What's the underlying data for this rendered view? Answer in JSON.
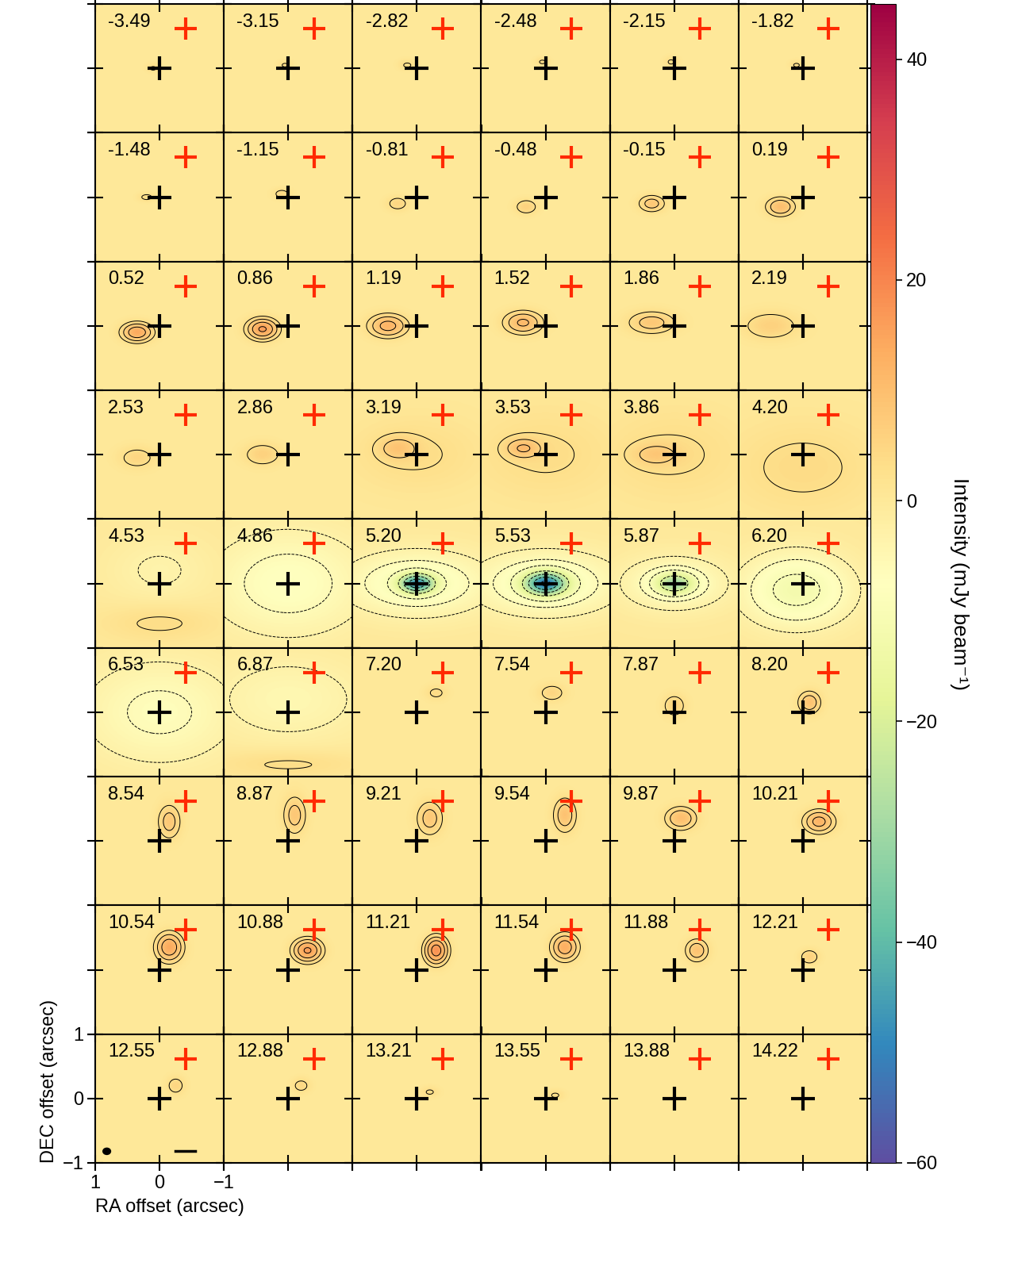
{
  "chart_data": {
    "type": "channel_map",
    "x_label": "RA offset (arcsec)",
    "y_label": "DEC offset (arcsec)",
    "xlim": [
      1,
      -1
    ],
    "ylim": [
      -1,
      1
    ],
    "xticks": [
      1,
      0,
      {
        "value": -1,
        "label": "−1"
      }
    ],
    "yticks": [
      {
        "value": -1,
        "label": "−1"
      },
      0,
      1
    ],
    "colorbar": {
      "label": "Intensity (mJy beam⁻¹)",
      "range": [
        -60,
        45
      ],
      "ticks": [
        {
          "value": -60,
          "label": "−60"
        },
        {
          "value": -40,
          "label": "−40"
        },
        {
          "value": -20,
          "label": "−20"
        },
        0,
        20,
        40
      ]
    },
    "contour_levels": [
      -50,
      -40,
      -30,
      -20,
      -10,
      -6,
      -3,
      3,
      6,
      10,
      15,
      20
    ],
    "black_cross": [
      0,
      0
    ],
    "red_cross": [
      -0.4,
      0.62
    ],
    "panels": [
      {
        "label": "-3.49",
        "components": [
          {
            "ra": 0.1,
            "dec": 0.0,
            "peak": 3.5,
            "width_ra": 0.08,
            "width_dec": 0.05
          }
        ]
      },
      {
        "label": "-3.15",
        "components": [
          {
            "ra": 0.05,
            "dec": 0.05,
            "peak": 3.5,
            "width_ra": 0.08,
            "width_dec": 0.05
          }
        ]
      },
      {
        "label": "-2.82",
        "components": [
          {
            "ra": 0.15,
            "dec": 0.05,
            "peak": 3.5,
            "width_ra": 0.1,
            "width_dec": 0.06
          }
        ]
      },
      {
        "label": "-2.48",
        "components": [
          {
            "ra": 0.05,
            "dec": 0.1,
            "peak": 3.5,
            "width_ra": 0.08,
            "width_dec": 0.05
          }
        ]
      },
      {
        "label": "-2.15",
        "components": [
          {
            "ra": 0.05,
            "dec": 0.1,
            "peak": 3.5,
            "width_ra": 0.08,
            "width_dec": 0.06
          }
        ]
      },
      {
        "label": "-1.82",
        "components": [
          {
            "ra": 0.1,
            "dec": 0.05,
            "peak": 3.5,
            "width_ra": 0.08,
            "width_dec": 0.05
          }
        ]
      },
      {
        "label": "-1.48",
        "components": [
          {
            "ra": 0.2,
            "dec": 0.0,
            "peak": 4,
            "width_ra": 0.1,
            "width_dec": 0.05
          }
        ]
      },
      {
        "label": "-1.15",
        "components": [
          {
            "ra": 0.1,
            "dec": 0.05,
            "peak": 4.5,
            "width_ra": 0.1,
            "width_dec": 0.06
          }
        ]
      },
      {
        "label": "-0.81",
        "components": [
          {
            "ra": 0.3,
            "dec": -0.1,
            "peak": 5,
            "width_ra": 0.12,
            "width_dec": 0.08
          }
        ]
      },
      {
        "label": "-0.48",
        "components": [
          {
            "ra": 0.3,
            "dec": -0.15,
            "peak": 6,
            "width_ra": 0.12,
            "width_dec": 0.08
          }
        ]
      },
      {
        "label": "-0.15",
        "components": [
          {
            "ra": 0.35,
            "dec": -0.1,
            "peak": 8,
            "width_ra": 0.14,
            "width_dec": 0.09
          }
        ]
      },
      {
        "label": "0.19",
        "components": [
          {
            "ra": 0.35,
            "dec": -0.15,
            "peak": 10,
            "width_ra": 0.15,
            "width_dec": 0.1
          }
        ]
      },
      {
        "label": "0.52",
        "components": [
          {
            "ra": 0.35,
            "dec": -0.1,
            "peak": 14,
            "width_ra": 0.16,
            "width_dec": 0.1
          }
        ]
      },
      {
        "label": "0.86",
        "components": [
          {
            "ra": 0.4,
            "dec": -0.05,
            "peak": 16,
            "width_ra": 0.16,
            "width_dec": 0.11
          }
        ]
      },
      {
        "label": "1.19",
        "components": [
          {
            "ra": 0.45,
            "dec": 0.0,
            "peak": 12,
            "width_ra": 0.2,
            "width_dec": 0.12
          }
        ]
      },
      {
        "label": "1.52",
        "components": [
          {
            "ra": 0.35,
            "dec": 0.05,
            "peak": 11,
            "width_ra": 0.2,
            "width_dec": 0.12
          }
        ]
      },
      {
        "label": "1.86",
        "components": [
          {
            "ra": 0.35,
            "dec": 0.05,
            "peak": 8,
            "width_ra": 0.25,
            "width_dec": 0.12
          }
        ]
      },
      {
        "label": "2.19",
        "components": [
          {
            "ra": 0.5,
            "dec": 0.0,
            "peak": 6,
            "width_ra": 0.3,
            "width_dec": 0.15
          }
        ]
      },
      {
        "label": "2.53",
        "components": [
          {
            "ra": 0.35,
            "dec": -0.05,
            "peak": 5,
            "width_ra": 0.2,
            "width_dec": 0.12
          }
        ]
      },
      {
        "label": "2.86",
        "components": [
          {
            "ra": 0.4,
            "dec": 0.0,
            "peak": 6,
            "width_ra": 0.2,
            "width_dec": 0.12
          }
        ]
      },
      {
        "label": "3.19",
        "components": [
          {
            "ra": 0.3,
            "dec": 0.1,
            "peak": 6,
            "width_ra": 0.2,
            "width_dec": 0.12
          },
          {
            "ra": 0.0,
            "dec": 0.0,
            "peak": 3.5,
            "width_ra": 0.7,
            "width_dec": 0.4
          }
        ]
      },
      {
        "label": "3.53",
        "components": [
          {
            "ra": 0.35,
            "dec": 0.1,
            "peak": 8,
            "width_ra": 0.18,
            "width_dec": 0.1
          },
          {
            "ra": 0.0,
            "dec": 0.0,
            "peak": 3.5,
            "width_ra": 0.8,
            "width_dec": 0.5
          }
        ]
      },
      {
        "label": "3.86",
        "components": [
          {
            "ra": 0.3,
            "dec": 0.0,
            "peak": 5,
            "width_ra": 0.25,
            "width_dec": 0.12
          },
          {
            "ra": 0.0,
            "dec": 0.0,
            "peak": 3.5,
            "width_ra": 0.8,
            "width_dec": 0.5
          }
        ]
      },
      {
        "label": "4.20",
        "components": [
          {
            "ra": 0.0,
            "dec": -0.2,
            "peak": 4,
            "width_ra": 0.8,
            "width_dec": 0.5
          }
        ]
      },
      {
        "label": "4.53",
        "components": [
          {
            "ra": 0.0,
            "dec": -0.6,
            "peak": 4,
            "width_ra": 0.6,
            "width_dec": 0.2
          },
          {
            "ra": 0.0,
            "dec": 0.2,
            "peak": -3.5,
            "width_ra": 0.6,
            "width_dec": 0.4
          }
        ]
      },
      {
        "label": "4.86",
        "components": [
          {
            "ra": 0.0,
            "dec": 0.0,
            "peak": -8,
            "width_ra": 0.9,
            "width_dec": 0.6
          }
        ]
      },
      {
        "label": "5.20",
        "components": [
          {
            "ra": 0.0,
            "dec": 0.0,
            "peak": -38,
            "width_ra": 0.18,
            "width_dec": 0.1
          },
          {
            "ra": 0.0,
            "dec": 0.0,
            "peak": -10,
            "width_ra": 0.8,
            "width_dec": 0.35
          }
        ]
      },
      {
        "label": "5.53",
        "components": [
          {
            "ra": 0.0,
            "dec": 0.0,
            "peak": -42,
            "width_ra": 0.22,
            "width_dec": 0.12
          },
          {
            "ra": 0.0,
            "dec": 0.0,
            "peak": -10,
            "width_ra": 0.8,
            "width_dec": 0.35
          }
        ]
      },
      {
        "label": "5.87",
        "components": [
          {
            "ra": 0.0,
            "dec": 0.0,
            "peak": -22,
            "width_ra": 0.2,
            "width_dec": 0.11
          },
          {
            "ra": 0.0,
            "dec": 0.0,
            "peak": -8,
            "width_ra": 0.6,
            "width_dec": 0.3
          }
        ]
      },
      {
        "label": "6.20",
        "components": [
          {
            "ra": 0.1,
            "dec": -0.1,
            "peak": -12,
            "width_ra": 0.6,
            "width_dec": 0.4
          }
        ]
      },
      {
        "label": "6.53",
        "components": [
          {
            "ra": 0.0,
            "dec": 0.0,
            "peak": -7,
            "width_ra": 0.9,
            "width_dec": 0.6
          }
        ]
      },
      {
        "label": "6.87",
        "components": [
          {
            "ra": 0.0,
            "dec": 0.2,
            "peak": -5,
            "width_ra": 0.9,
            "width_dec": 0.5
          },
          {
            "ra": 0.0,
            "dec": -0.8,
            "peak": 4,
            "width_ra": 0.8,
            "width_dec": 0.15
          }
        ]
      },
      {
        "label": "7.20",
        "components": [
          {
            "ra": -0.3,
            "dec": 0.3,
            "peak": 4,
            "width_ra": 0.12,
            "width_dec": 0.08
          }
        ]
      },
      {
        "label": "7.54",
        "components": [
          {
            "ra": -0.1,
            "dec": 0.3,
            "peak": 5,
            "width_ra": 0.15,
            "width_dec": 0.1
          }
        ]
      },
      {
        "label": "7.87",
        "components": [
          {
            "ra": 0.0,
            "dec": 0.1,
            "peak": 6,
            "width_ra": 0.12,
            "width_dec": 0.12
          }
        ]
      },
      {
        "label": "8.20",
        "components": [
          {
            "ra": -0.1,
            "dec": 0.15,
            "peak": 9,
            "width_ra": 0.12,
            "width_dec": 0.12
          }
        ]
      },
      {
        "label": "8.54",
        "components": [
          {
            "ra": -0.15,
            "dec": 0.3,
            "peak": 8,
            "width_ra": 0.12,
            "width_dec": 0.18
          }
        ]
      },
      {
        "label": "8.87",
        "components": [
          {
            "ra": -0.1,
            "dec": 0.4,
            "peak": 8,
            "width_ra": 0.12,
            "width_dec": 0.2
          }
        ]
      },
      {
        "label": "9.21",
        "components": [
          {
            "ra": -0.2,
            "dec": 0.35,
            "peak": 8,
            "width_ra": 0.14,
            "width_dec": 0.18
          }
        ]
      },
      {
        "label": "9.54",
        "components": [
          {
            "ra": -0.3,
            "dec": 0.4,
            "peak": 9,
            "width_ra": 0.12,
            "width_dec": 0.18
          }
        ]
      },
      {
        "label": "9.87",
        "components": [
          {
            "ra": -0.1,
            "dec": 0.35,
            "peak": 10,
            "width_ra": 0.16,
            "width_dec": 0.12
          }
        ]
      },
      {
        "label": "10.21",
        "components": [
          {
            "ra": -0.25,
            "dec": 0.3,
            "peak": 12,
            "width_ra": 0.16,
            "width_dec": 0.12
          }
        ]
      },
      {
        "label": "10.54",
        "components": [
          {
            "ra": -0.15,
            "dec": 0.35,
            "peak": 14,
            "width_ra": 0.14,
            "width_dec": 0.15
          }
        ]
      },
      {
        "label": "10.88",
        "components": [
          {
            "ra": -0.3,
            "dec": 0.3,
            "peak": 16,
            "width_ra": 0.15,
            "width_dec": 0.12
          }
        ]
      },
      {
        "label": "11.21",
        "components": [
          {
            "ra": -0.3,
            "dec": 0.3,
            "peak": 18,
            "width_ra": 0.12,
            "width_dec": 0.14
          }
        ]
      },
      {
        "label": "11.54",
        "components": [
          {
            "ra": -0.3,
            "dec": 0.35,
            "peak": 13,
            "width_ra": 0.14,
            "width_dec": 0.14
          }
        ]
      },
      {
        "label": "11.88",
        "components": [
          {
            "ra": -0.35,
            "dec": 0.3,
            "peak": 9,
            "width_ra": 0.12,
            "width_dec": 0.12
          }
        ]
      },
      {
        "label": "12.21",
        "components": [
          {
            "ra": -0.1,
            "dec": 0.2,
            "peak": 6,
            "width_ra": 0.1,
            "width_dec": 0.08
          }
        ]
      },
      {
        "label": "12.55",
        "components": [
          {
            "ra": -0.25,
            "dec": 0.2,
            "peak": 5,
            "width_ra": 0.1,
            "width_dec": 0.1
          }
        ]
      },
      {
        "label": "12.88",
        "components": [
          {
            "ra": -0.2,
            "dec": 0.2,
            "peak": 4.5,
            "width_ra": 0.1,
            "width_dec": 0.08
          }
        ]
      },
      {
        "label": "13.21",
        "components": [
          {
            "ra": -0.2,
            "dec": 0.1,
            "peak": 3.5,
            "width_ra": 0.1,
            "width_dec": 0.06
          }
        ]
      },
      {
        "label": "13.55",
        "components": [
          {
            "ra": -0.15,
            "dec": 0.05,
            "peak": 3.5,
            "width_ra": 0.1,
            "width_dec": 0.06
          }
        ]
      },
      {
        "label": "13.88",
        "components": []
      },
      {
        "label": "14.22",
        "components": []
      }
    ]
  }
}
